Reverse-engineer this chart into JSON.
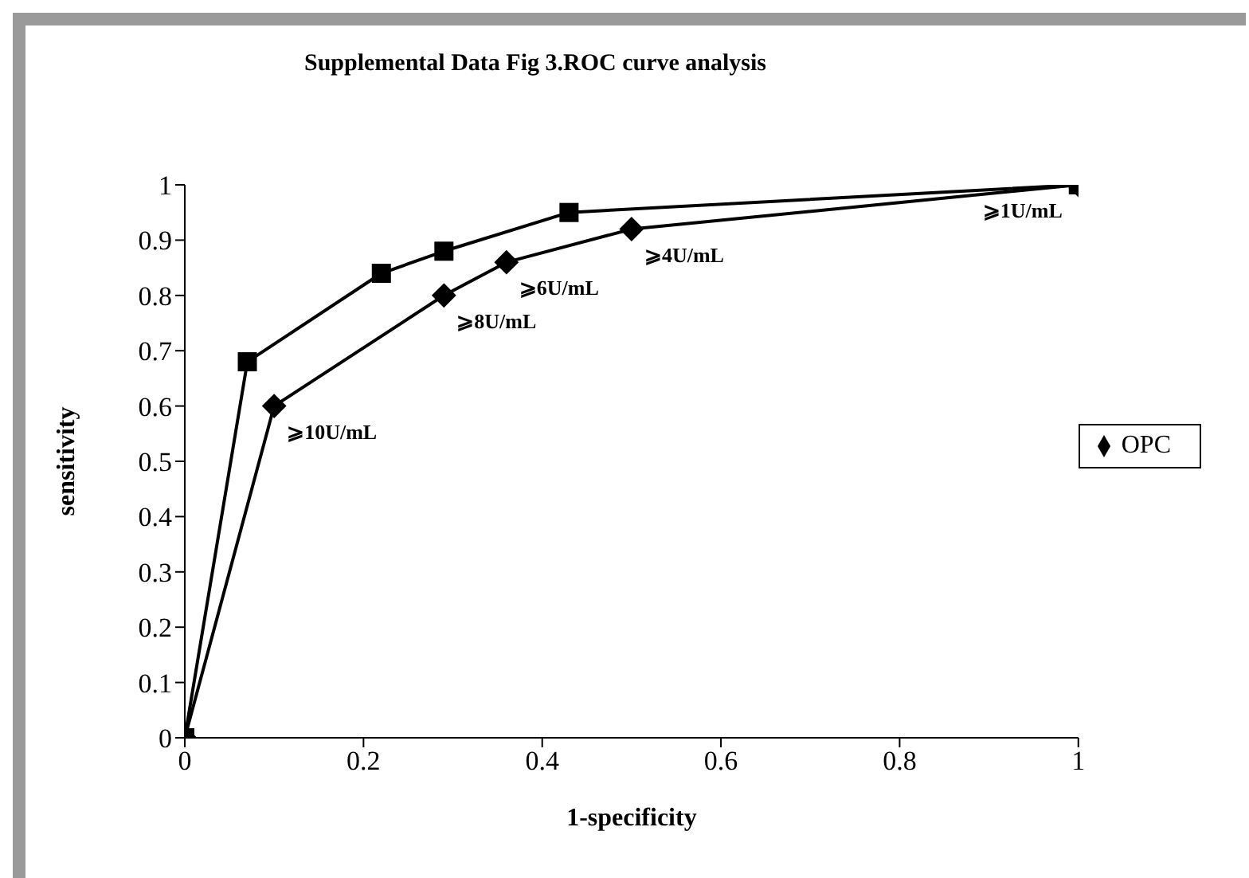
{
  "chart_data": {
    "type": "line",
    "title": "Supplemental Data Fig 3.ROC curve analysis",
    "xlabel": "1-specificity",
    "ylabel": "sensitivity",
    "xlim": [
      0,
      1
    ],
    "xticks": [
      0,
      0.2,
      0.4,
      0.6,
      0.8,
      1
    ],
    "ylim": [
      0,
      1
    ],
    "yticks": [
      0,
      0.1,
      0.2,
      0.3,
      0.4,
      0.5,
      0.6,
      0.7,
      0.8,
      0.9,
      1
    ],
    "legend": "right",
    "line_style": "solid",
    "series": [
      {
        "name": "OPC",
        "color": "#000000",
        "marker": "diamond",
        "x": [
          0,
          0.1,
          0.29,
          0.36,
          0.5,
          1
        ],
        "values": [
          0,
          0.6,
          0.8,
          0.86,
          0.92,
          1
        ]
      },
      {
        "color": "#000000",
        "marker": "square",
        "x": [
          0,
          0.07,
          0.22,
          0.29,
          0.43,
          1
        ],
        "values": [
          0,
          0.68,
          0.84,
          0.88,
          0.95,
          1
        ]
      }
    ],
    "annotations": [
      {
        "text": "⩾10U/mL",
        "x": 0.1,
        "y": 0.6
      },
      {
        "text": "⩾8U/mL",
        "x": 0.29,
        "y": 0.8
      },
      {
        "text": "⩾6U/mL",
        "x": 0.36,
        "y": 0.86
      },
      {
        "text": "⩾4U/mL",
        "x": 0.5,
        "y": 0.92
      },
      {
        "text": "⩾1U/mL",
        "x": 1,
        "y": 1
      }
    ]
  }
}
